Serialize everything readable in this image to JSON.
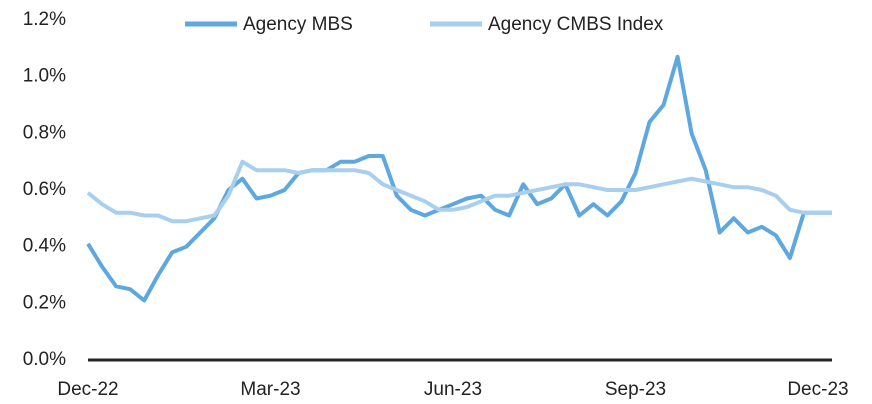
{
  "chart_data": {
    "type": "line",
    "categories": [
      "Dec-22",
      null,
      null,
      null,
      null,
      null,
      null,
      null,
      null,
      null,
      null,
      null,
      null,
      "Mar-23",
      null,
      null,
      null,
      null,
      null,
      null,
      null,
      null,
      null,
      null,
      null,
      null,
      "Jun-23",
      null,
      null,
      null,
      null,
      null,
      null,
      null,
      null,
      null,
      null,
      null,
      null,
      "Sep-23",
      null,
      null,
      null,
      null,
      null,
      null,
      null,
      null,
      null,
      null,
      null,
      null,
      "Dec-23",
      null
    ],
    "series": [
      {
        "name": "Agency MBS",
        "color": "#5ea7df",
        "values": [
          0.41,
          0.33,
          0.26,
          0.25,
          0.21,
          0.3,
          0.38,
          0.4,
          0.45,
          0.5,
          0.6,
          0.64,
          0.57,
          0.58,
          0.6,
          0.66,
          0.67,
          0.67,
          0.7,
          0.7,
          0.72,
          0.72,
          0.58,
          0.53,
          0.51,
          0.53,
          0.55,
          0.57,
          0.58,
          0.53,
          0.51,
          0.62,
          0.55,
          0.57,
          0.62,
          0.51,
          0.55,
          0.51,
          0.56,
          0.66,
          0.84,
          0.9,
          1.07,
          0.8,
          0.67,
          0.45,
          0.5,
          0.45,
          0.47,
          0.44,
          0.36,
          0.52,
          0.52,
          0.52
        ]
      },
      {
        "name": "Agency CMBS Index",
        "color": "#a8cfee",
        "values": [
          0.59,
          0.55,
          0.52,
          0.52,
          0.51,
          0.51,
          0.49,
          0.49,
          0.5,
          0.51,
          0.58,
          0.7,
          0.67,
          0.67,
          0.67,
          0.66,
          0.67,
          0.67,
          0.67,
          0.67,
          0.66,
          0.62,
          0.6,
          0.58,
          0.56,
          0.53,
          0.53,
          0.54,
          0.56,
          0.58,
          0.58,
          0.59,
          0.6,
          0.61,
          0.62,
          0.62,
          0.61,
          0.6,
          0.6,
          0.6,
          0.61,
          0.62,
          0.63,
          0.64,
          0.63,
          0.62,
          0.61,
          0.61,
          0.6,
          0.58,
          0.53,
          0.52,
          0.52,
          0.52
        ]
      }
    ],
    "ylim": [
      0,
      1.2
    ],
    "yticks": [
      {
        "value": 0,
        "label": "0.0%"
      },
      {
        "value": 0.2,
        "label": "0.2%"
      },
      {
        "value": 0.4,
        "label": "0.4%"
      },
      {
        "value": 0.6,
        "label": "0.6%"
      },
      {
        "value": 0.8,
        "label": "0.8%"
      },
      {
        "value": 1.0,
        "label": "1.0%"
      },
      {
        "value": 1.2,
        "label": "1.2%"
      }
    ],
    "legend": "top"
  }
}
